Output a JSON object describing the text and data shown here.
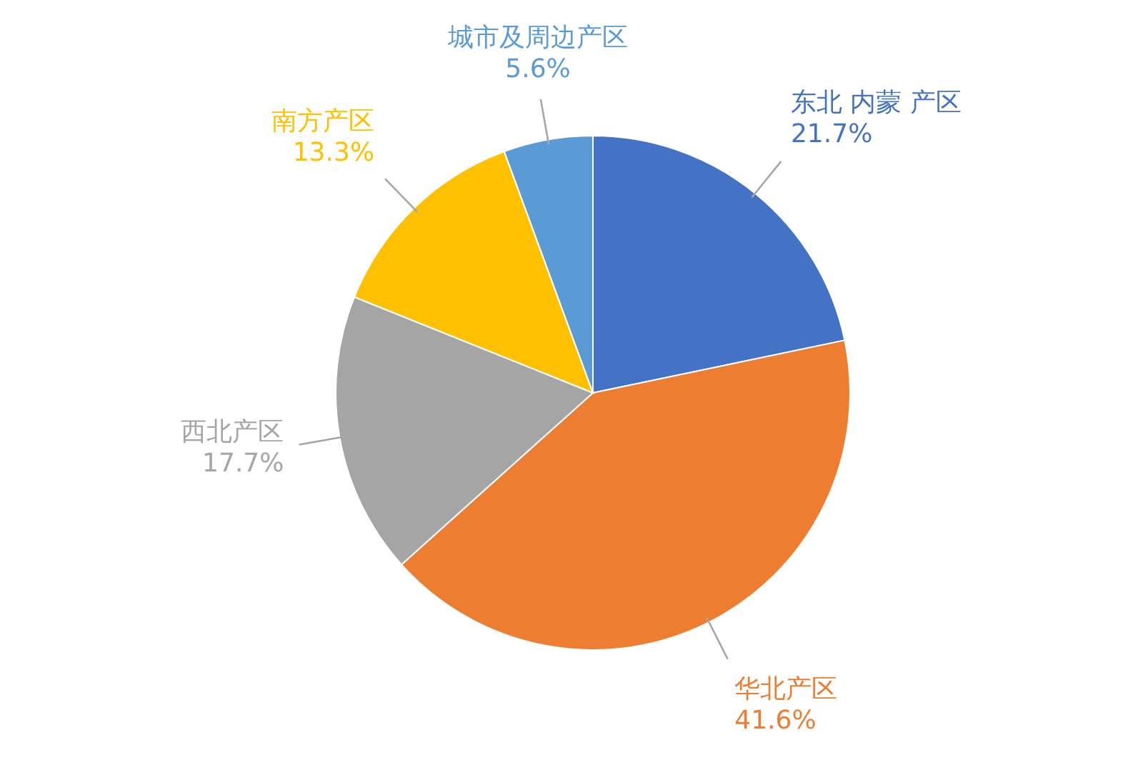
{
  "chart_data": {
    "type": "pie",
    "categories": [
      "东北 内蒙 产区",
      "华北产区",
      "西北产区",
      "南方产区",
      "城市及周边产区"
    ],
    "values": [
      21.7,
      41.6,
      17.7,
      13.3,
      5.6
    ],
    "value_labels": [
      "21.7%",
      "41.6%",
      "17.7%",
      "13.3%",
      "5.6%"
    ],
    "colors": [
      "#4472c4",
      "#ed7d31",
      "#a5a5a5",
      "#ffc000",
      "#5b9bd5"
    ]
  }
}
